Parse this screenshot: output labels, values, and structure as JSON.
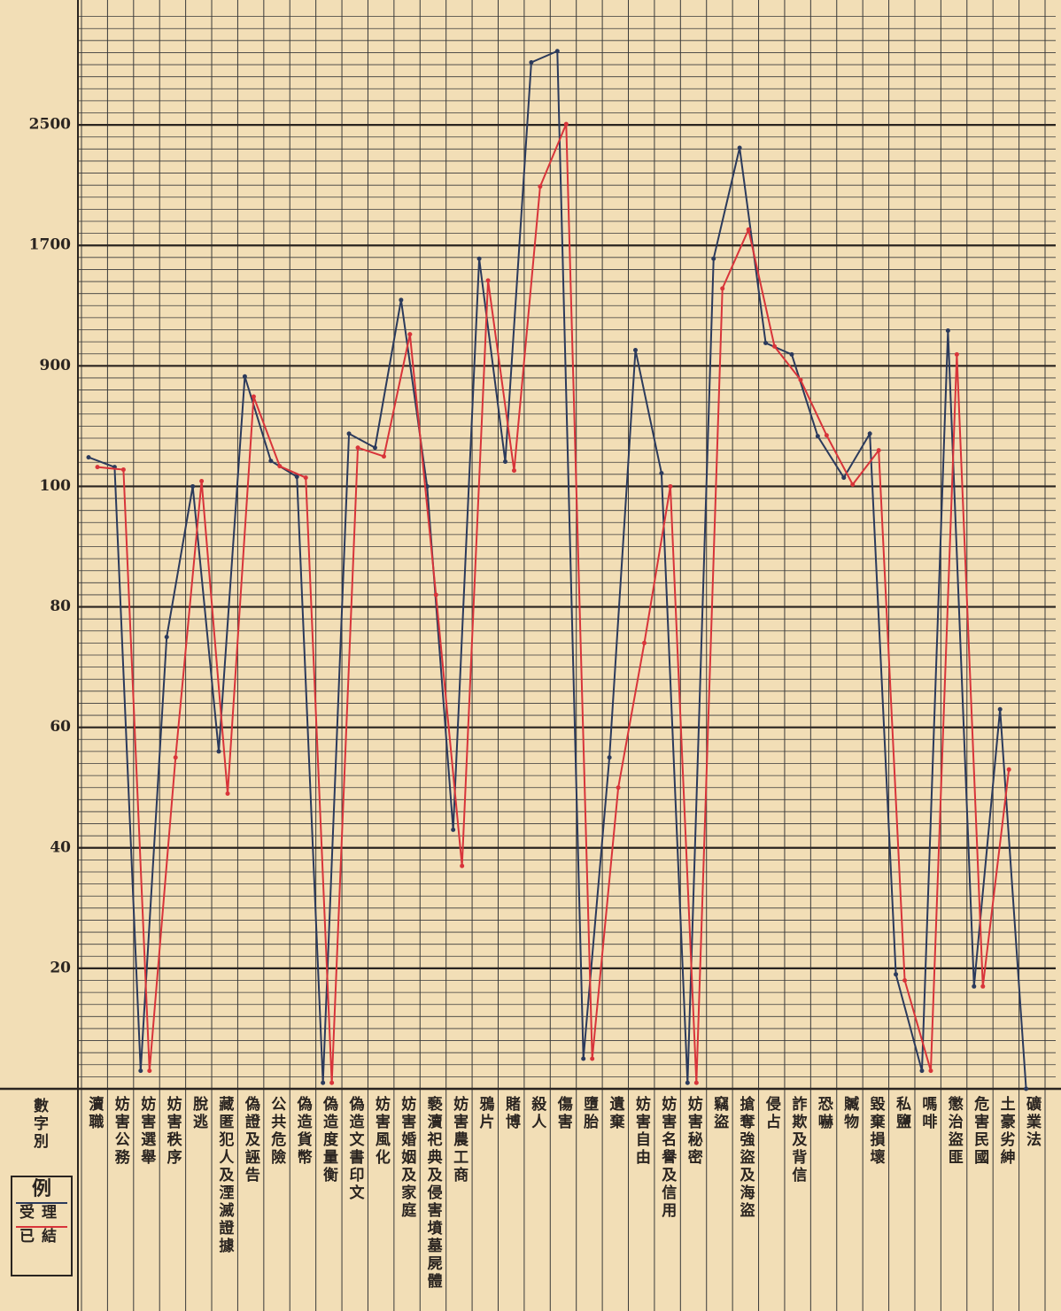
{
  "chart_data": {
    "type": "line",
    "axis_header": "數字別",
    "legend_title": "例",
    "categories": [
      "瀆職",
      "妨害公務",
      "妨害選舉",
      "妨害秩序",
      "脫逃",
      "藏匿犯人及湮滅證據",
      "偽證及誣告",
      "公共危險",
      "偽造貨幣",
      "偽造度量衡",
      "偽造文書印文",
      "妨害風化",
      "妨害婚姻及家庭",
      "褻瀆祀典及侵害墳墓屍體",
      "妨害農工商",
      "鴉片",
      "賭博",
      "殺人",
      "傷害",
      "墮胎",
      "遺棄",
      "妨害自由",
      "妨害名譽及信用",
      "妨害秘密",
      "竊盜",
      "搶奪強盜及海盜",
      "侵占",
      "詐欺及背信",
      "恐嚇",
      "贓物",
      "毀棄損壞",
      "私鹽",
      "嗎啡",
      "懲治盜匪",
      "危害民國",
      "土豪劣紳",
      "礦業法"
    ],
    "series": [
      {
        "name": "受理",
        "color": "#2b3a5c",
        "values": [
          293,
          228,
          3,
          75,
          100,
          56,
          830,
          269,
          164,
          1,
          450,
          357,
          1338,
          100,
          43,
          1612,
          264,
          2915,
          2990,
          5,
          55,
          1005,
          188,
          1,
          1612,
          2348,
          1052,
          976,
          433,
          158,
          450,
          19,
          3,
          1134,
          17,
          63,
          0
        ]
      },
      {
        "name": "已結",
        "color": "#d8343a",
        "values": [
          228,
          211,
          3,
          55,
          135,
          49,
          696,
          234,
          158,
          1,
          357,
          299,
          1110,
          82,
          37,
          1467,
          205,
          2091,
          2506,
          5,
          50,
          74,
          100,
          1,
          1414,
          1805,
          1029,
          807,
          439,
          112,
          339,
          18,
          3,
          976,
          17,
          53,
          null
        ]
      }
    ],
    "ylim": [
      0,
      3300
    ],
    "yticks": [
      20,
      40,
      60,
      80,
      100,
      900,
      1700,
      2500
    ],
    "grid": true
  }
}
